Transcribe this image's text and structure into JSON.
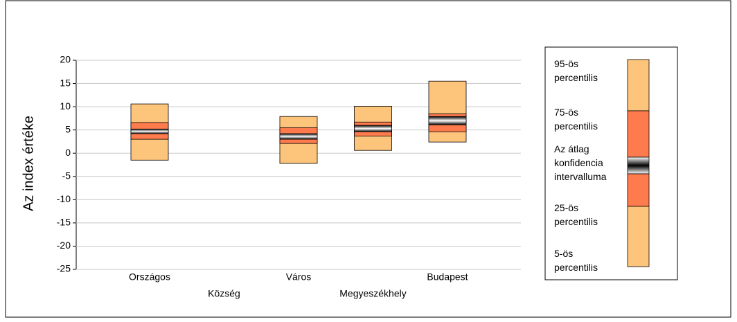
{
  "chart_data": {
    "type": "percentile-box",
    "y_label": "Az index értéke",
    "categories": [
      "Országos",
      "Község",
      "Város",
      "Megyeszékhely",
      "Budapest"
    ],
    "p5": [
      -1.5,
      null,
      -2.2,
      0.6,
      2.4
    ],
    "p25": [
      3.0,
      null,
      2.1,
      3.7,
      4.6
    ],
    "ci_low": [
      4.2,
      null,
      3.0,
      4.6,
      6.1
    ],
    "ci_high": [
      5.2,
      null,
      4.2,
      6.0,
      7.9
    ],
    "p75": [
      6.6,
      null,
      5.5,
      6.7,
      8.5
    ],
    "p95": [
      10.6,
      null,
      7.9,
      10.1,
      15.5
    ],
    "ylim": [
      -25,
      20
    ],
    "yticks": [
      -25,
      -20,
      -15,
      -10,
      -5,
      0,
      5,
      10,
      15,
      20
    ],
    "grid": true,
    "colors": {
      "outer": "#fdc47c",
      "inner": "#fd7b4d"
    },
    "legend": [
      "95-ös percentilis",
      "75-ös percentilis",
      "Az átlag konfidencia intervalluma",
      "25-ös percentilis",
      "5-ös percentilis"
    ]
  }
}
